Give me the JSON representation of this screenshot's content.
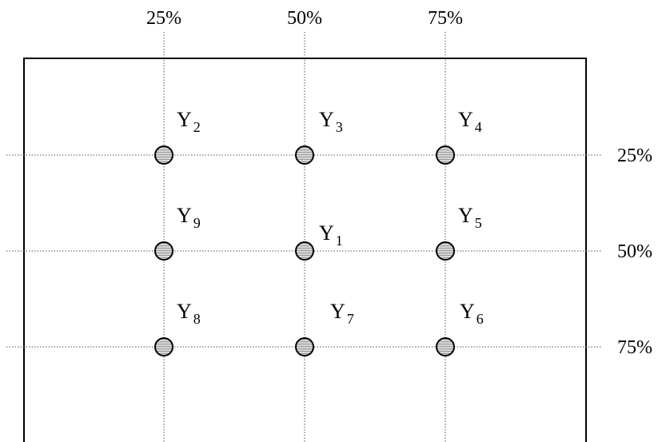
{
  "top_labels": [
    "25%",
    "50%",
    "75%"
  ],
  "right_labels": [
    "25%",
    "50%",
    "75%"
  ],
  "points": [
    {
      "name": "Y",
      "sub": "2",
      "col": 0,
      "row": 0
    },
    {
      "name": "Y",
      "sub": "3",
      "col": 1,
      "row": 0
    },
    {
      "name": "Y",
      "sub": "4",
      "col": 2,
      "row": 0
    },
    {
      "name": "Y",
      "sub": "9",
      "col": 0,
      "row": 1
    },
    {
      "name": "Y",
      "sub": "1",
      "col": 1,
      "row": 1
    },
    {
      "name": "Y",
      "sub": "5",
      "col": 2,
      "row": 1
    },
    {
      "name": "Y",
      "sub": "8",
      "col": 0,
      "row": 2
    },
    {
      "name": "Y",
      "sub": "7",
      "col": 1,
      "row": 2
    },
    {
      "name": "Y",
      "sub": "6",
      "col": 2,
      "row": 2
    }
  ]
}
